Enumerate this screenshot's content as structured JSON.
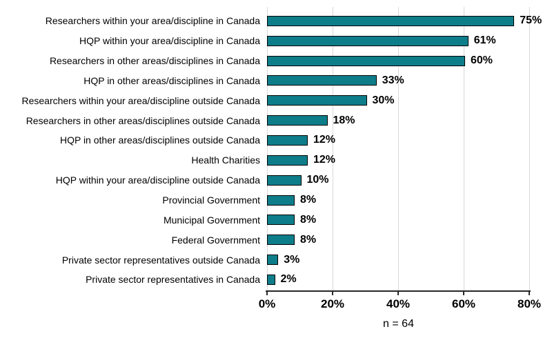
{
  "chart_data": {
    "type": "bar",
    "orientation": "horizontal",
    "title": "",
    "xlabel": "",
    "ylabel": "",
    "categories": [
      "Researchers within your area/discipline in Canada",
      "HQP within your area/discipline in Canada",
      "Researchers in other areas/disciplines in Canada",
      "HQP in other areas/disciplines in Canada",
      "Researchers within your area/discipline outside Canada",
      "Researchers in other areas/disciplines outside Canada",
      "HQP in other areas/disciplines outside Canada",
      "Health Charities",
      "HQP within your area/discipline outside Canada",
      "Provincial Government",
      "Municipal Government",
      "Federal Government",
      "Private sector representatives outside Canada",
      "Private sector representatives in Canada"
    ],
    "values": [
      75,
      61,
      60,
      33,
      30,
      18,
      12,
      12,
      10,
      8,
      8,
      8,
      3,
      2
    ],
    "value_labels": [
      "75%",
      "61%",
      "60%",
      "33%",
      "30%",
      "18%",
      "12%",
      "12%",
      "10%",
      "8%",
      "8%",
      "8%",
      "3%",
      "2%"
    ],
    "xlim": [
      0,
      80
    ],
    "x_tick_values": [
      0,
      20,
      40,
      60,
      80
    ],
    "x_ticks": [
      "0%",
      "20%",
      "40%",
      "60%",
      "80%"
    ],
    "grid": "vertical",
    "legend": "none",
    "caption": "n = 64",
    "colors": {
      "bar_fill": "#0e7d8a",
      "bar_border": "#000000",
      "gridline": "#d9d9d9",
      "axis_line": "#262626",
      "text": "#000000",
      "background": "#ffffff"
    }
  }
}
